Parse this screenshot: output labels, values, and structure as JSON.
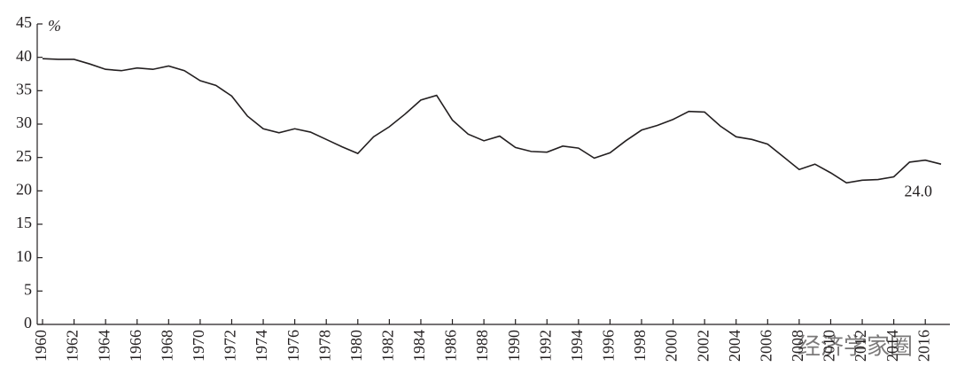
{
  "chart_data": {
    "type": "line",
    "y_label": "%",
    "annotation": "24.0",
    "watermark": "经济学家圈",
    "x": [
      1960,
      1961,
      1962,
      1963,
      1964,
      1965,
      1966,
      1967,
      1968,
      1969,
      1970,
      1971,
      1972,
      1973,
      1974,
      1975,
      1976,
      1977,
      1978,
      1979,
      1980,
      1981,
      1982,
      1983,
      1984,
      1985,
      1986,
      1987,
      1988,
      1989,
      1990,
      1991,
      1992,
      1993,
      1994,
      1995,
      1996,
      1997,
      1998,
      1999,
      2000,
      2001,
      2002,
      2003,
      2004,
      2005,
      2006,
      2007,
      2008,
      2009,
      2010,
      2011,
      2012,
      2013,
      2014,
      2015,
      2016,
      2017
    ],
    "values": [
      39.8,
      39.7,
      39.7,
      39.0,
      38.2,
      38.0,
      38.4,
      38.2,
      38.7,
      38.0,
      36.5,
      35.8,
      34.2,
      31.2,
      29.3,
      28.7,
      29.3,
      28.8,
      27.7,
      26.6,
      25.6,
      28.1,
      29.6,
      31.5,
      33.6,
      34.3,
      30.6,
      28.5,
      27.5,
      28.2,
      26.5,
      25.9,
      25.8,
      26.7,
      26.4,
      24.9,
      25.7,
      27.5,
      29.1,
      29.8,
      30.7,
      31.9,
      31.8,
      29.7,
      28.1,
      27.7,
      27.0,
      25.1,
      23.2,
      24.0,
      22.7,
      21.2,
      21.6,
      21.7,
      22.1,
      24.3,
      24.6,
      24.0
    ],
    "color": "#231f20",
    "xlim": [
      1960,
      2017
    ],
    "xticks": [
      1960,
      1962,
      1964,
      1966,
      1968,
      1970,
      1972,
      1974,
      1976,
      1978,
      1980,
      1982,
      1984,
      1986,
      1988,
      1990,
      1992,
      1994,
      1996,
      1998,
      2000,
      2002,
      2004,
      2006,
      2008,
      2010,
      2012,
      2014,
      2016
    ],
    "ylim": [
      0,
      45
    ],
    "yticks": [
      0,
      5,
      10,
      15,
      20,
      25,
      30,
      35,
      40,
      45
    ]
  }
}
